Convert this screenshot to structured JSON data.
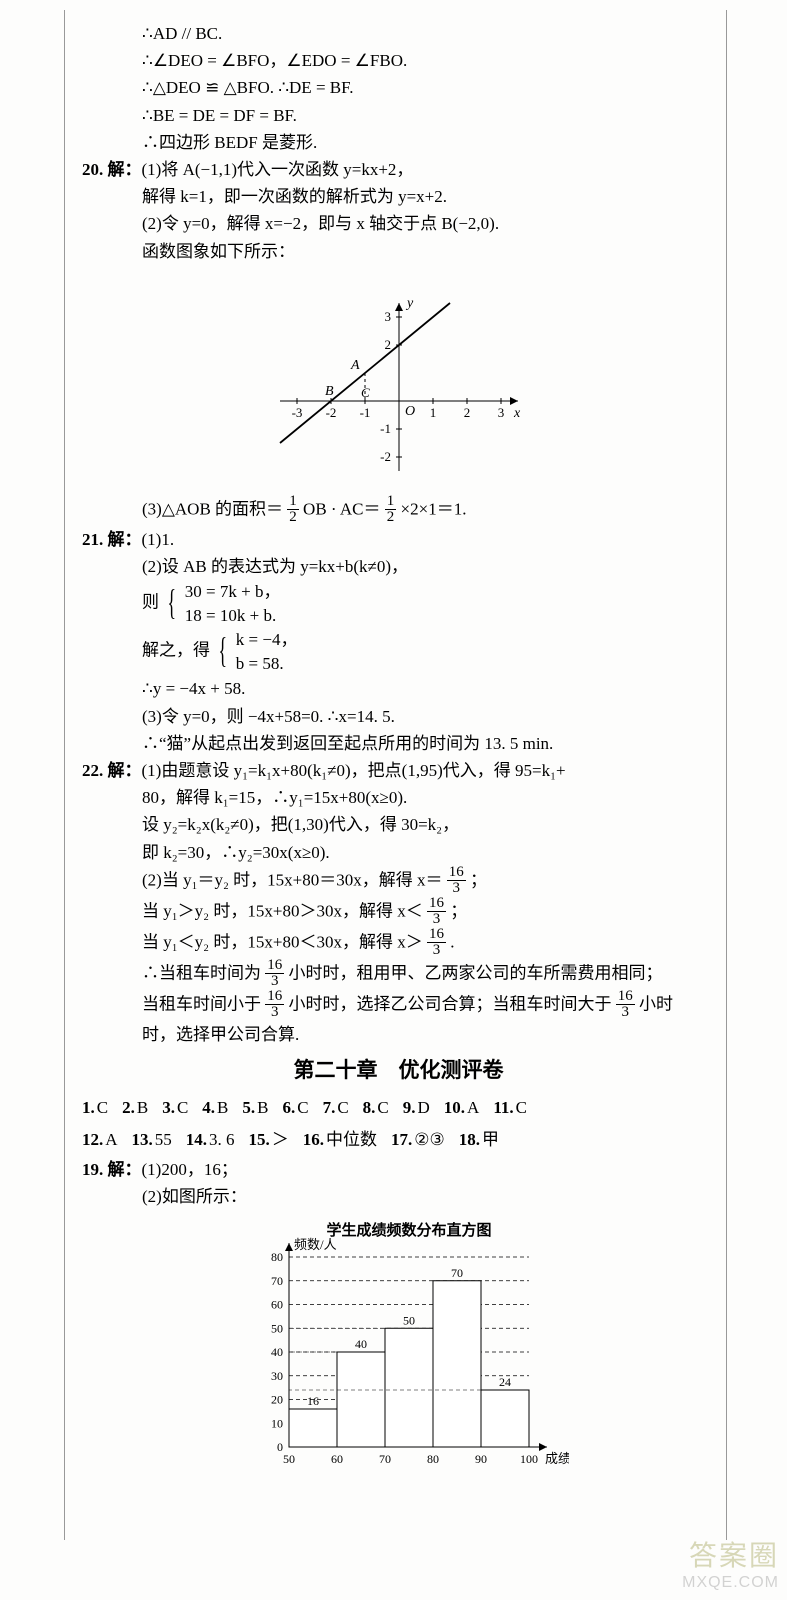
{
  "proof": {
    "l1": "∴AD // BC.",
    "l2": "∴∠DEO = ∠BFO，∠EDO = ∠FBO.",
    "l3": "∴△DEO ≌ △BFO. ∴DE = BF.",
    "l4": "∴BE = DE = DF = BF.",
    "l5": "∴四边形 BEDF 是菱形."
  },
  "q20": {
    "label": "20. 解：",
    "l1": "(1)将 A(−1,1)代入一次函数 y=kx+2，",
    "l2": "解得 k=1，即一次函数的解析式为 y=x+2.",
    "l3": "(2)令 y=0，解得 x=−2，即与 x 轴交于点 B(−2,0).",
    "l4": "函数图象如下所示：",
    "l5a": "(3)△AOB 的面积＝",
    "l5b": "OB · AC＝",
    "l5c": "×2×1＝1.",
    "chart": {
      "x_ticks": [
        -3,
        -2,
        -1,
        1,
        2,
        3
      ],
      "y_ticks": [
        -2,
        -1,
        2,
        3
      ],
      "labels": {
        "A": "A",
        "B": "B",
        "C": "C",
        "O": "O",
        "x": "x",
        "y": "y"
      },
      "point_A": [
        -1,
        1
      ],
      "point_B": [
        -2,
        0
      ],
      "point_C": [
        -1,
        0
      ],
      "line_color": "#000",
      "grid_color": "#000",
      "dash": "3,3",
      "xlim": [
        -3.5,
        3.5
      ],
      "ylim": [
        -2.5,
        3.5
      ]
    }
  },
  "q21": {
    "label": "21. 解：",
    "l1": "(1)1.",
    "l2": "(2)设 AB 的表达式为 y=kx+b(k≠0)，",
    "l3_pre": "则",
    "sys1a": "30 = 7k + b，",
    "sys1b": "18 = 10k + b.",
    "l4_pre": "解之，得",
    "sys2a": "k = −4，",
    "sys2b": "b = 58.",
    "l5": "∴y = −4x + 58.",
    "l6": "(3)令 y=0，则 −4x+58=0. ∴x=14. 5.",
    "l7": "∴“猫”从起点出发到返回至起点所用的时间为 13. 5 min."
  },
  "q22": {
    "label": "22. 解：",
    "l1": "(1)由题意设 y₁=k₁x+80(k₁≠0)，把点(1,95)代入，得 95=k₁+",
    "l1b": "80，解得 k₁=15，∴y₁=15x+80(x≥0).",
    "l2": "设 y₂=k₂x(k₂≠0)，把(1,30)代入，得 30=k₂，",
    "l3": "即 k₂=30，∴y₂=30x(x≥0).",
    "l4a": "(2)当 y₁＝y₂ 时，15x+80＝30x，解得 x＝",
    "l4b": "；",
    "l5a": "当 y₁＞y₂ 时，15x+80＞30x，解得 x＜",
    "l5b": "；",
    "l6a": "当 y₁＜y₂ 时，15x+80＜30x，解得 x＞",
    "l6b": ".",
    "l7a": "∴当租车时间为",
    "l7b": "小时时，租用甲、乙两家公司的车所需费用相同；",
    "l8a": "当租车时间小于",
    "l8b": "小时时，选择乙公司合算；当租车时间大于",
    "l8c": "小时",
    "l9": "时，选择甲公司合算."
  },
  "chapter": "第二十章　优化测评卷",
  "answers": {
    "r1": [
      {
        "n": "1.",
        "v": "C"
      },
      {
        "n": "2.",
        "v": "B"
      },
      {
        "n": "3.",
        "v": "C"
      },
      {
        "n": "4.",
        "v": "B"
      },
      {
        "n": "5.",
        "v": "B"
      },
      {
        "n": "6.",
        "v": "C"
      },
      {
        "n": "7.",
        "v": "C"
      },
      {
        "n": "8.",
        "v": "C"
      },
      {
        "n": "9.",
        "v": "D"
      },
      {
        "n": "10.",
        "v": "A"
      },
      {
        "n": "11.",
        "v": "C"
      }
    ],
    "r2": [
      {
        "n": "12.",
        "v": "A"
      },
      {
        "n": "13.",
        "v": "55"
      },
      {
        "n": "14.",
        "v": "3. 6"
      },
      {
        "n": "15.",
        "v": "＞"
      },
      {
        "n": "16.",
        "v": "中位数"
      },
      {
        "n": "17.",
        "v": "②③"
      },
      {
        "n": "18.",
        "v": "甲"
      }
    ]
  },
  "q19": {
    "label": "19. 解：",
    "l1": "(1)200，16；",
    "l2": "(2)如图所示："
  },
  "histogram": {
    "title": "学生成绩频数分布直方图",
    "ylabel": "频数/人",
    "xlabel": "成绩/分",
    "x_ticks": [
      50,
      60,
      70,
      80,
      90,
      100
    ],
    "y_ticks": [
      10,
      20,
      30,
      40,
      50,
      60,
      70,
      80
    ],
    "bars": [
      {
        "from": 50,
        "to": 60,
        "v": 16,
        "label": "16"
      },
      {
        "from": 60,
        "to": 70,
        "v": 40,
        "label": "40"
      },
      {
        "from": 70,
        "to": 80,
        "v": 50,
        "label": "50"
      },
      {
        "from": 80,
        "to": 90,
        "v": 70,
        "label": "70"
      },
      {
        "from": 90,
        "to": 100,
        "v": 24,
        "label": "24"
      }
    ],
    "fill": "#ffffff",
    "stroke": "#000",
    "grid_dash": "4,3",
    "title_fontsize": 15,
    "label_fontsize": 13,
    "tick_fontsize": 12
  },
  "watermark": {
    "top": "答案圈",
    "bottom": "MXQE.COM"
  },
  "frac_16_3": {
    "t": "16",
    "b": "3"
  },
  "frac_1_2": {
    "t": "1",
    "b": "2"
  }
}
